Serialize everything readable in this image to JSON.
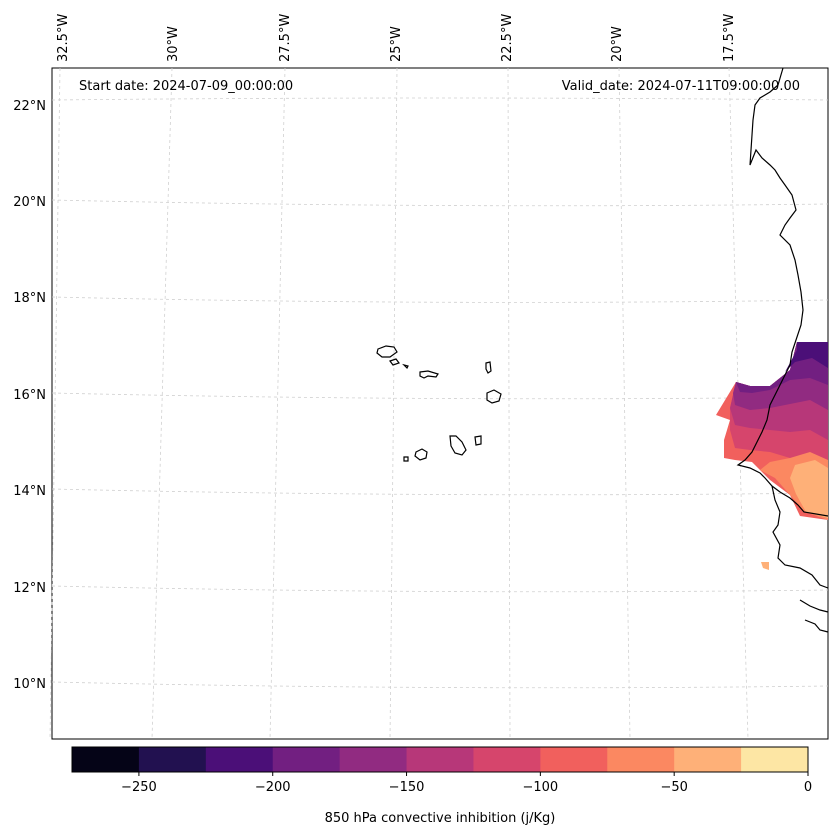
{
  "annotations": {
    "start_date": "Start date: 2024-07-09_00:00:00",
    "valid_date": "Valid_date: 2024-07-11T09:00:00.00"
  },
  "longitude_labels": [
    "32.5°W",
    "30°W",
    "27.5°W",
    "25°W",
    "22.5°W",
    "20°W",
    "17.5°W"
  ],
  "latitude_labels": [
    "22°N",
    "20°N",
    "18°N",
    "16°N",
    "14°N",
    "12°N",
    "10°N"
  ],
  "colorbar": {
    "label": "850 hPa convective inhibition (j/Kg)",
    "ticks": [
      "−250",
      "−200",
      "−150",
      "−100",
      "−50",
      "0"
    ],
    "colors": [
      "#050417",
      "#221150",
      "#4b0f78",
      "#721f81",
      "#912b81",
      "#b73779",
      "#d6456c",
      "#f1605d",
      "#fb8861",
      "#feb078",
      "#fde6a4"
    ]
  },
  "chart_data": {
    "type": "heatmap",
    "variable": "850 hPa convective inhibition",
    "unit": "j/Kg",
    "levels": [
      -275,
      -250,
      -225,
      -200,
      -175,
      -150,
      -125,
      -100,
      -75,
      -50,
      -25,
      0
    ],
    "lon_ticks": [
      -32.5,
      -30,
      -27.5,
      -25,
      -22.5,
      -20,
      -17.5
    ],
    "lat_ticks": [
      22,
      20,
      18,
      16,
      14,
      12,
      10
    ],
    "grid": true
  }
}
